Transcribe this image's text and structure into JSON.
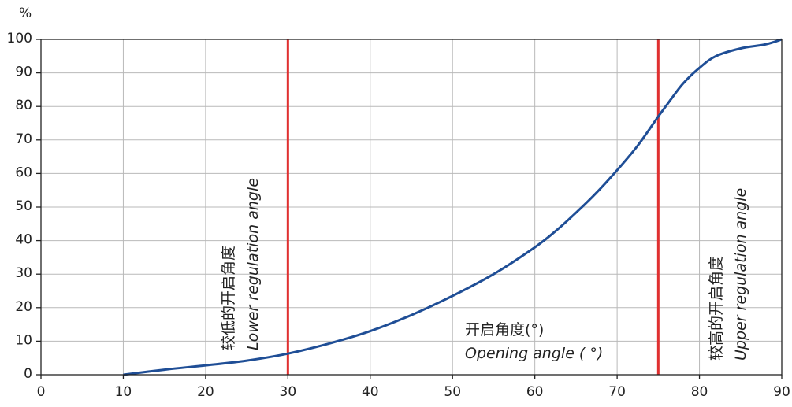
{
  "chart_data": {
    "type": "line",
    "title": "",
    "xlabel": "",
    "ylabel": "%",
    "xlim": [
      0,
      90
    ],
    "ylim": [
      0,
      100
    ],
    "x_ticks": [
      0,
      10,
      20,
      30,
      40,
      50,
      60,
      70,
      80,
      90
    ],
    "y_ticks": [
      0,
      10,
      20,
      30,
      40,
      50,
      60,
      70,
      80,
      90,
      100
    ],
    "grid": true,
    "series": [
      {
        "color": "#1f4e96",
        "x": [
          10,
          15,
          20,
          25,
          30,
          35,
          40,
          45,
          50,
          55,
          60,
          62.5,
          65,
          67.5,
          70,
          72.5,
          75,
          76.5,
          78,
          80,
          82,
          85,
          88,
          90
        ],
        "y": [
          0,
          1.5,
          2.8,
          4.2,
          6.3,
          9.3,
          13,
          17.8,
          23.5,
          30,
          38,
          42.8,
          48.3,
          54.3,
          61,
          68.3,
          77,
          82,
          86.8,
          91.5,
          95,
          97.3,
          98.5,
          100
        ]
      }
    ],
    "vertical_lines": [
      {
        "x": 30,
        "color": "#e03030"
      },
      {
        "x": 75,
        "color": "#e03030"
      }
    ],
    "annotations": {
      "lower_cn": "较低的开启角度",
      "lower_en": "Lower regulation angle",
      "upper_cn": "较高的开启角度",
      "upper_en": "Upper regulation angle",
      "opening_cn": "开启角度(°)",
      "opening_en": "Opening angle ( °)"
    }
  }
}
